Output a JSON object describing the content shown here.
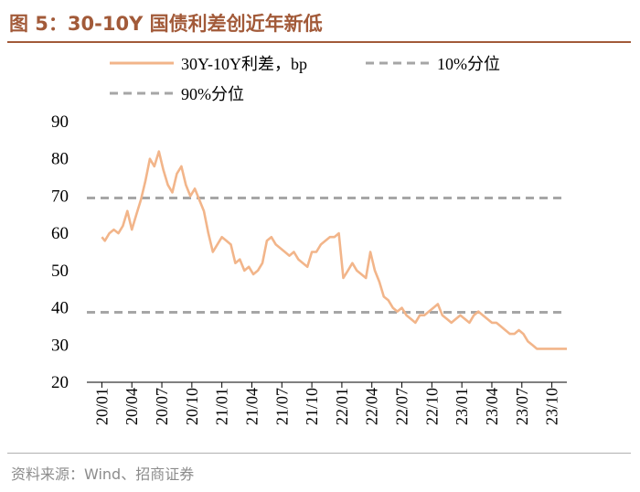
{
  "figure": {
    "title": "图 5：30-10Y 国债利差创近年新低",
    "source": "资料来源：Wind、招商证券"
  },
  "colors": {
    "title": "#a25a39",
    "spread_line": "#f2b58a",
    "percentile_line": "#a6a6a6",
    "axis_text": "#000000"
  },
  "chart_data": {
    "type": "line",
    "title": "",
    "xlabel": "",
    "ylabel": "",
    "ylim": [
      20,
      90
    ],
    "yticks": [
      20,
      30,
      40,
      50,
      60,
      70,
      80,
      90
    ],
    "xticks": [
      "20/01",
      "20/04",
      "20/07",
      "20/10",
      "21/01",
      "21/04",
      "21/07",
      "21/10",
      "22/01",
      "22/04",
      "22/07",
      "22/10",
      "23/01",
      "23/04",
      "23/07",
      "23/10"
    ],
    "legend": [
      "30Y-10Y利差，bp",
      "10%分位",
      "90%分位"
    ],
    "legend_position": "top",
    "series": [
      {
        "name": "30Y-10Y利差，bp",
        "style": "solid",
        "x": [
          0,
          0.1,
          0.25,
          0.4,
          0.55,
          0.7,
          0.85,
          1.0,
          1.15,
          1.3,
          1.45,
          1.6,
          1.75,
          1.9,
          2.05,
          2.2,
          2.35,
          2.5,
          2.65,
          2.8,
          2.95,
          3.1,
          3.25,
          3.4,
          3.55,
          3.7,
          3.85,
          4.0,
          4.15,
          4.3,
          4.45,
          4.6,
          4.75,
          4.9,
          5.05,
          5.2,
          5.35,
          5.5,
          5.65,
          5.8,
          5.95,
          6.1,
          6.25,
          6.4,
          6.55,
          6.7,
          6.85,
          7.0,
          7.15,
          7.3,
          7.45,
          7.6,
          7.75,
          7.9,
          8.05,
          8.2,
          8.35,
          8.5,
          8.65,
          8.8,
          8.95,
          9.1,
          9.25,
          9.4,
          9.55,
          9.7,
          9.85,
          10.0,
          10.15,
          10.3,
          10.45,
          10.6,
          10.75,
          10.9,
          11.05,
          11.2,
          11.35,
          11.5,
          11.65,
          11.8,
          11.95,
          12.1,
          12.25,
          12.4,
          12.55,
          12.7,
          12.85,
          13.0,
          13.15,
          13.3,
          13.45,
          13.6,
          13.75,
          13.9,
          14.05,
          14.2,
          14.35,
          14.5,
          14.65,
          14.8,
          14.95,
          15.1,
          15.25,
          15.4,
          15.5
        ],
        "values": [
          59,
          58,
          60,
          61,
          60,
          62,
          66,
          61,
          65,
          69,
          74,
          80,
          78,
          82,
          77,
          73,
          71,
          76,
          78,
          73,
          70,
          72,
          69,
          66,
          60,
          55,
          57,
          59,
          58,
          57,
          52,
          53,
          50,
          51,
          49,
          50,
          52,
          58,
          59,
          57,
          56,
          55,
          54,
          55,
          53,
          52,
          51,
          55,
          55,
          57,
          58,
          59,
          59,
          60,
          48,
          50,
          52,
          50,
          49,
          48,
          55,
          50,
          47,
          43,
          42,
          40,
          39,
          40,
          38,
          37,
          36,
          38,
          38,
          39,
          40,
          41,
          38,
          37,
          36,
          37,
          38,
          37,
          36,
          38,
          39,
          38,
          37,
          36,
          36,
          35,
          34,
          33,
          33,
          34,
          33,
          31,
          30,
          29,
          29,
          29,
          29,
          29,
          29,
          29,
          29
        ]
      },
      {
        "name": "10%分位",
        "style": "dashed",
        "values": [
          38.8
        ]
      },
      {
        "name": "90%分位",
        "style": "dashed",
        "values": [
          69.5
        ]
      }
    ]
  }
}
